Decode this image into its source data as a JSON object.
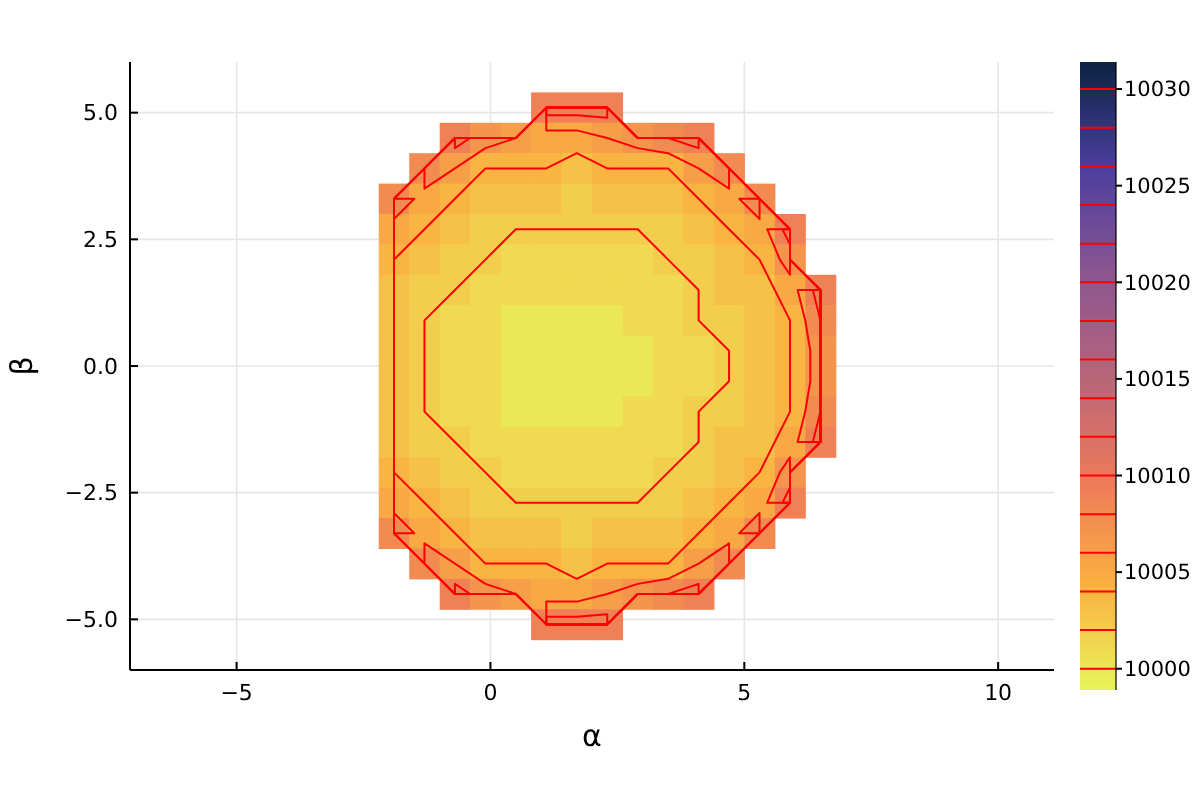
{
  "chart_data": {
    "type": "scatter",
    "xlabel": "α",
    "ylabel": "β",
    "xlim": [
      -7.1,
      11.1
    ],
    "ylim": [
      -6,
      6
    ],
    "xticks": [
      {
        "value": -5,
        "label": "−5"
      },
      0,
      5,
      10
    ],
    "yticks": [
      {
        "value": -5,
        "label": "−5.0"
      },
      {
        "value": -2.5,
        "label": "−2.5"
      },
      {
        "value": 0,
        "label": "0.0"
      },
      {
        "value": 2.5,
        "label": "2.5"
      },
      {
        "value": 5,
        "label": "5.0"
      }
    ],
    "grid": true,
    "marker": "square",
    "clim": [
      9998.9,
      10031.4
    ],
    "cticks": [
      10000,
      10005,
      10010,
      10015,
      10020,
      10025,
      10030
    ],
    "x": [
      1.1,
      1.7,
      2.3,
      -0.7,
      -0.1,
      0.5,
      1.1,
      1.7,
      2.3,
      2.9,
      3.5,
      4.1,
      -1.3,
      -0.7,
      -0.1,
      0.5,
      1.1,
      1.7,
      2.3,
      2.9,
      3.5,
      4.1,
      4.7,
      -1.9,
      -1.3,
      -0.7,
      -0.1,
      0.5,
      1.1,
      1.7,
      2.3,
      2.9,
      3.5,
      4.1,
      4.7,
      5.3,
      -1.9,
      -1.3,
      -0.7,
      -0.1,
      0.5,
      1.1,
      1.7,
      2.3,
      2.9,
      3.5,
      4.1,
      4.7,
      5.3,
      5.9,
      -1.9,
      -1.3,
      -0.7,
      -0.1,
      0.5,
      1.1,
      1.7,
      2.3,
      2.9,
      3.5,
      4.1,
      4.7,
      5.3,
      5.9,
      -1.9,
      -1.3,
      -0.7,
      -0.1,
      0.5,
      1.1,
      1.7,
      2.3,
      2.9,
      3.5,
      4.1,
      4.7,
      5.3,
      5.9,
      6.5,
      -1.9,
      -1.3,
      -0.7,
      -0.1,
      0.5,
      1.1,
      1.7,
      2.3,
      2.9,
      3.5,
      4.1,
      4.7,
      5.3,
      5.9,
      6.5,
      -1.9,
      -1.3,
      -0.7,
      -0.1,
      0.5,
      1.1,
      1.7,
      2.3,
      2.9,
      3.5,
      4.1,
      4.7,
      5.3,
      5.9,
      6.5,
      -1.9,
      -1.3,
      -0.7,
      -0.1,
      0.5,
      1.1,
      1.7,
      2.3,
      2.9,
      3.5,
      4.1,
      4.7,
      5.3,
      5.9,
      6.5,
      -1.9,
      -1.3,
      -0.7,
      -0.1,
      0.5,
      1.1,
      1.7,
      2.3,
      2.9,
      3.5,
      4.1,
      4.7,
      5.3,
      5.9,
      6.5,
      -1.9,
      -1.3,
      -0.7,
      -0.1,
      0.5,
      1.1,
      1.7,
      2.3,
      2.9,
      3.5,
      4.1,
      4.7,
      5.3,
      5.9,
      6.5,
      -1.9,
      -1.3,
      -0.7,
      -0.1,
      0.5,
      1.1,
      1.7,
      2.3,
      2.9,
      3.5,
      4.1,
      4.7,
      5.3,
      5.9,
      -1.9,
      -1.3,
      -0.7,
      -0.1,
      0.5,
      1.1,
      1.7,
      2.3,
      2.9,
      3.5,
      4.1,
      4.7,
      5.3,
      5.9,
      -1.9,
      -1.3,
      -0.7,
      -0.1,
      0.5,
      1.1,
      1.7,
      2.3,
      2.9,
      3.5,
      4.1,
      4.7,
      5.3,
      -1.3,
      -0.7,
      -0.1,
      0.5,
      1.1,
      1.7,
      2.3,
      2.9,
      3.5,
      4.1,
      4.7,
      -0.7,
      -0.1,
      0.5,
      1.1,
      1.7,
      2.3,
      2.9,
      3.5,
      4.1,
      1.1,
      1.7,
      2.3
    ],
    "values": [
      5.1,
      5.1,
      5.1,
      4.5,
      4.5,
      4.5,
      4.5,
      4.5,
      4.5,
      4.5,
      4.5,
      4.5,
      3.9,
      3.9,
      3.9,
      3.9,
      3.9,
      3.9,
      3.9,
      3.9,
      3.9,
      3.9,
      3.9,
      3.3,
      3.3,
      3.3,
      3.3,
      3.3,
      3.3,
      3.3,
      3.3,
      3.3,
      3.3,
      3.3,
      3.3,
      3.3,
      2.7,
      2.7,
      2.7,
      2.7,
      2.7,
      2.7,
      2.7,
      2.7,
      2.7,
      2.7,
      2.7,
      2.7,
      2.7,
      2.7,
      2.1,
      2.1,
      2.1,
      2.1,
      2.1,
      2.1,
      2.1,
      2.1,
      2.1,
      2.1,
      2.1,
      2.1,
      2.1,
      2.1,
      1.5,
      1.5,
      1.5,
      1.5,
      1.5,
      1.5,
      1.5,
      1.5,
      1.5,
      1.5,
      1.5,
      1.5,
      1.5,
      1.5,
      1.5,
      0.9,
      0.9,
      0.9,
      0.9,
      0.9,
      0.9,
      0.9,
      0.9,
      0.9,
      0.9,
      0.9,
      0.9,
      0.9,
      0.9,
      0.9,
      0.3,
      0.3,
      0.3,
      0.3,
      0.3,
      0.3,
      0.3,
      0.3,
      0.3,
      0.3,
      0.3,
      0.3,
      0.3,
      0.3,
      0.3,
      -0.3,
      -0.3,
      -0.3,
      -0.3,
      -0.3,
      -0.3,
      -0.3,
      -0.3,
      -0.3,
      -0.3,
      -0.3,
      -0.3,
      -0.3,
      -0.3,
      -0.3,
      -0.9,
      -0.9,
      -0.9,
      -0.9,
      -0.9,
      -0.9,
      -0.9,
      -0.9,
      -0.9,
      -0.9,
      -0.9,
      -0.9,
      -0.9,
      -0.9,
      -0.9,
      -1.5,
      -1.5,
      -1.5,
      -1.5,
      -1.5,
      -1.5,
      -1.5,
      -1.5,
      -1.5,
      -1.5,
      -1.5,
      -1.5,
      -1.5,
      -1.5,
      -1.5,
      -2.1,
      -2.1,
      -2.1,
      -2.1,
      -2.1,
      -2.1,
      -2.1,
      -2.1,
      -2.1,
      -2.1,
      -2.1,
      -2.1,
      -2.1,
      -2.1,
      -2.7,
      -2.7,
      -2.7,
      -2.7,
      -2.7,
      -2.7,
      -2.7,
      -2.7,
      -2.7,
      -2.7,
      -2.7,
      -2.7,
      -2.7,
      -2.7,
      -3.3,
      -3.3,
      -3.3,
      -3.3,
      -3.3,
      -3.3,
      -3.3,
      -3.3,
      -3.3,
      -3.3,
      -3.3,
      -3.3,
      -3.3,
      -3.9,
      -3.9,
      -3.9,
      -3.9,
      -3.9,
      -3.9,
      -3.9,
      -3.9,
      -3.9,
      -3.9,
      -3.9,
      -4.5,
      -4.5,
      -4.5,
      -4.5,
      -4.5,
      -4.5,
      -4.5,
      -4.5,
      -4.5,
      -5.1,
      -5.1,
      -5.1
    ],
    "cvalues": [
      10009,
      10009,
      10009,
      10009,
      10007,
      10006,
      10005,
      10005,
      10006,
      10007,
      10008,
      10009,
      10008,
      10006,
      10004,
      10004,
      10004,
      10003,
      10004,
      10004,
      10004,
      10006,
      10008,
      10008,
      10005,
      10004,
      10003,
      10003,
      10003,
      10002,
      10003,
      10003,
      10003,
      10004,
      10005,
      10008,
      10005,
      10004,
      10003,
      10002,
      10002,
      10002,
      10002,
      10002,
      10002,
      10002,
      10003,
      10004,
      10005,
      10009,
      10004,
      10003,
      10002,
      10002,
      10001,
      10001,
      10001,
      10001,
      10001,
      10002,
      10002,
      10003,
      10004,
      10007,
      10003,
      10002,
      10002,
      10001,
      10001,
      10001,
      10001,
      10001,
      10001,
      10001,
      10002,
      10003,
      10003,
      10005,
      10009,
      10003,
      10002,
      10001,
      10001,
      10000,
      10000,
      10000,
      10000,
      10001,
      10001,
      10002,
      10002,
      10003,
      10004,
      10008,
      10003,
      10002,
      10001,
      10001,
      10000,
      10000,
      10000,
      10000,
      10000,
      10001,
      10001,
      10002,
      10003,
      10004,
      10007,
      10003,
      10002,
      10001,
      10001,
      10000,
      10000,
      10000,
      10000,
      10000,
      10001,
      10001,
      10002,
      10003,
      10004,
      10007,
      10003,
      10002,
      10001,
      10001,
      10000,
      10000,
      10000,
      10000,
      10001,
      10001,
      10002,
      10002,
      10003,
      10004,
      10008,
      10003,
      10002,
      10002,
      10001,
      10001,
      10001,
      10001,
      10001,
      10001,
      10001,
      10002,
      10003,
      10003,
      10005,
      10009,
      10004,
      10003,
      10002,
      10002,
      10001,
      10001,
      10001,
      10001,
      10001,
      10002,
      10002,
      10003,
      10004,
      10007,
      10005,
      10004,
      10003,
      10002,
      10002,
      10002,
      10002,
      10002,
      10002,
      10002,
      10003,
      10004,
      10005,
      10009,
      10008,
      10005,
      10004,
      10003,
      10003,
      10003,
      10002,
      10003,
      10003,
      10003,
      10004,
      10005,
      10008,
      10008,
      10006,
      10004,
      10004,
      10004,
      10003,
      10004,
      10004,
      10004,
      10006,
      10008,
      10009,
      10007,
      10006,
      10005,
      10005,
      10006,
      10007,
      10008,
      10009,
      10009,
      10009,
      10009
    ]
  }
}
